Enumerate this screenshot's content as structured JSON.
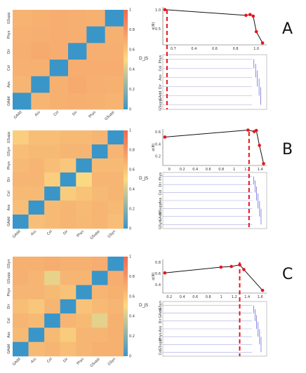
{
  "colors": {
    "low": "#3a96c8",
    "mid": "#fbd983",
    "high": "#ee6a52",
    "curve": "#111111",
    "point": "#e8131b",
    "cut": "#e8131b",
    "dendro": "#5b5bd6",
    "dendro_light": "#a8a8e0"
  },
  "colorbar": {
    "label": "D_JS",
    "ticks": [
      "0",
      "0.2",
      "0.4",
      "0.6",
      "0.8",
      "1"
    ]
  },
  "chart_data": [
    {
      "panel": "A",
      "type": "heatmap",
      "rows": [
        "GSupp",
        "Phys",
        "Dir",
        "Col",
        "Ass",
        "GAdd"
      ],
      "cols": [
        "GAdd",
        "Ass",
        "Col",
        "Dir",
        "Phys",
        "GSupp"
      ],
      "values": [
        [
          0.67,
          0.68,
          0.7,
          0.69,
          0.68,
          0.0
        ],
        [
          0.68,
          0.69,
          0.7,
          0.69,
          0.0,
          0.68
        ],
        [
          0.69,
          0.71,
          0.7,
          0.0,
          0.69,
          0.69
        ],
        [
          0.68,
          0.68,
          0.0,
          0.7,
          0.7,
          0.7
        ],
        [
          0.66,
          0.0,
          0.68,
          0.71,
          0.69,
          0.68
        ],
        [
          0.0,
          0.66,
          0.68,
          0.69,
          0.68,
          0.67
        ]
      ],
      "curve_x_ticks": [
        "0.7",
        "0.4",
        "0.6",
        "0.8",
        "1.0"
      ],
      "curve_y_ticks": [
        "1.0",
        "0.5"
      ],
      "curve_y_label": "α(Φ)",
      "curve_points": [
        [
          0.02,
          0.93
        ],
        [
          0.8,
          0.78
        ],
        [
          0.84,
          0.8
        ],
        [
          0.87,
          0.76
        ],
        [
          0.9,
          0.35
        ],
        [
          0.96,
          0.05
        ]
      ],
      "cut_x": 0.04,
      "dendro_labels": [
        "Phys",
        "Col",
        "Ass",
        "Dir",
        "GAdd",
        "GSupp"
      ]
    },
    {
      "panel": "B",
      "type": "heatmap",
      "rows": [
        "GSupp",
        "GSyn",
        "Phys",
        "Dir",
        "Col",
        "Ass",
        "GAdd"
      ],
      "cols": [
        "GAdd",
        "Ass",
        "Col",
        "Dir",
        "Phys",
        "GSupp",
        "GSyn"
      ],
      "values": [
        [
          0.55,
          0.62,
          0.62,
          0.64,
          0.64,
          0.66,
          0.0
        ],
        [
          0.62,
          0.64,
          0.64,
          0.66,
          0.66,
          0.0,
          0.66
        ],
        [
          0.64,
          0.66,
          0.62,
          0.58,
          0.0,
          0.64,
          0.64
        ],
        [
          0.66,
          0.66,
          0.55,
          0.0,
          0.5,
          0.66,
          0.66
        ],
        [
          0.64,
          0.64,
          0.0,
          0.56,
          0.6,
          0.64,
          0.66
        ],
        [
          0.62,
          0.0,
          0.64,
          0.66,
          0.64,
          0.66,
          0.64
        ],
        [
          0.0,
          0.62,
          0.64,
          0.66,
          0.65,
          0.66,
          0.62
        ]
      ],
      "curve_x_ticks": [
        "0",
        "0.2",
        "0.4",
        "0.6",
        "0.8",
        "1",
        "1.2",
        "1.4"
      ],
      "curve_y_ticks": [
        "0.6",
        "0.4",
        "0.2"
      ],
      "curve_y_label": "α(Φ)",
      "curve_points": [
        [
          0.02,
          0.78
        ],
        [
          0.82,
          0.97
        ],
        [
          0.88,
          0.93
        ],
        [
          0.9,
          0.96
        ],
        [
          0.93,
          0.55
        ],
        [
          0.97,
          0.05
        ]
      ],
      "cut_x": 0.83,
      "dendro_labels": [
        "Phys",
        "Dir",
        "Col",
        "Ass",
        "GSupp",
        "GAdd",
        "GSyn"
      ]
    },
    {
      "panel": "C",
      "type": "heatmap",
      "rows": [
        "GSyn",
        "GSupp",
        "Phys",
        "Dir",
        "Col",
        "Ass",
        "GAdd"
      ],
      "cols": [
        "GAdd",
        "Ass",
        "Col",
        "Dir",
        "Phys",
        "GSupp",
        "GSyn"
      ],
      "values": [
        [
          0.68,
          0.68,
          0.7,
          0.68,
          0.68,
          0.7,
          0.0
        ],
        [
          0.68,
          0.66,
          0.45,
          0.66,
          0.66,
          0.0,
          0.7
        ],
        [
          0.66,
          0.66,
          0.64,
          0.6,
          0.0,
          0.66,
          0.68
        ],
        [
          0.62,
          0.58,
          0.66,
          0.0,
          0.6,
          0.64,
          0.66
        ],
        [
          0.66,
          0.64,
          0.0,
          0.66,
          0.64,
          0.44,
          0.68
        ],
        [
          0.64,
          0.0,
          0.64,
          0.56,
          0.66,
          0.66,
          0.68
        ],
        [
          0.0,
          0.64,
          0.66,
          0.62,
          0.66,
          0.68,
          0.68
        ]
      ],
      "curve_x_ticks": [
        "0.2",
        "0.4",
        "0.6",
        "0.8",
        "1",
        "1.2",
        "1.4",
        "1.6"
      ],
      "curve_y_ticks": [
        "0.8",
        "0.6",
        "0.4"
      ],
      "curve_y_label": "α(Φ)",
      "curve_points": [
        [
          0.02,
          0.6
        ],
        [
          0.56,
          0.77
        ],
        [
          0.66,
          0.79
        ],
        [
          0.74,
          0.84
        ],
        [
          0.78,
          0.7
        ],
        [
          0.96,
          0.08
        ]
      ],
      "cut_x": 0.74,
      "dendro_labels": [
        "GSyn",
        "GAdd",
        "Dir",
        "Ass",
        "Phys",
        "GSupp",
        "Col"
      ]
    }
  ]
}
